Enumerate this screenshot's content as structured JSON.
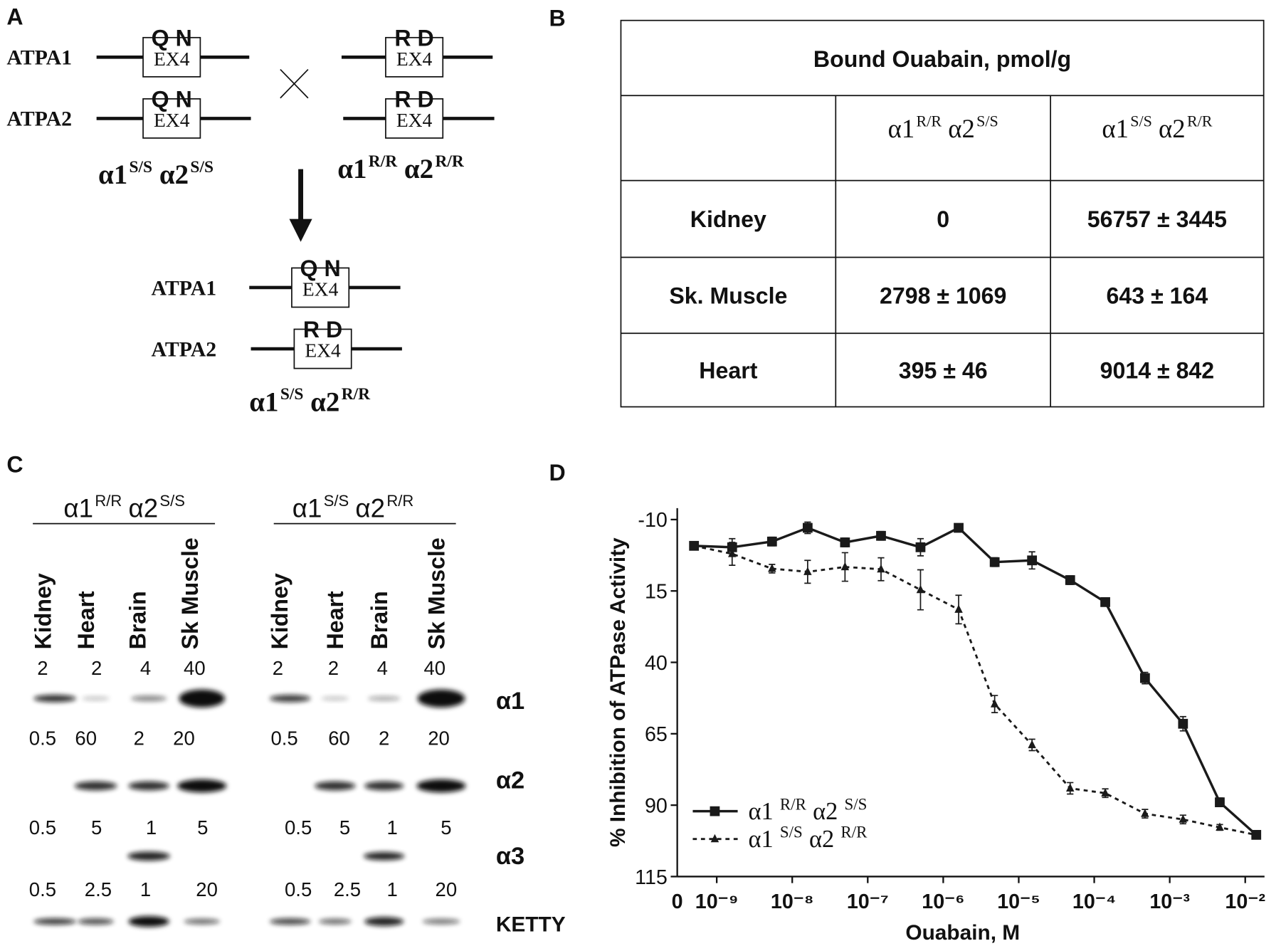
{
  "panel_a": {
    "label": "A",
    "parents": [
      {
        "genes": [
          {
            "name": "ATPA1",
            "residues": "Q N",
            "exon": "EX4"
          },
          {
            "name": "ATPA2",
            "residues": "Q N",
            "exon": "EX4"
          }
        ],
        "genotype": {
          "a1": "α1",
          "a1_sup": "S/S",
          "a2": "α2",
          "a2_sup": "S/S"
        }
      },
      {
        "genes": [
          {
            "residues": "R D",
            "exon": "EX4"
          },
          {
            "residues": "R D",
            "exon": "EX4"
          }
        ],
        "genotype": {
          "a1": "α1",
          "a1_sup": "R/R",
          "a2": "α2",
          "a2_sup": "R/R"
        }
      }
    ],
    "offspring": {
      "genes": [
        {
          "name": "ATPA1",
          "residues": "Q N",
          "exon": "EX4"
        },
        {
          "name": "ATPA2",
          "residues": "R D",
          "exon": "EX4"
        }
      ],
      "genotype": {
        "a1": "α1",
        "a1_sup": "S/S",
        "a2": "α2",
        "a2_sup": "R/R"
      }
    }
  },
  "panel_b": {
    "label": "B",
    "title": "Bound Ouabain, pmol/g",
    "columns": [
      {
        "a1": "α1",
        "a1_sup": "R/R",
        "a2": "α2",
        "a2_sup": "S/S"
      },
      {
        "a1": "α1",
        "a1_sup": "S/S",
        "a2": "α2",
        "a2_sup": "R/R"
      }
    ],
    "rows": [
      {
        "tissue": "Kidney",
        "cells": [
          "0",
          "56757 ± 3445"
        ]
      },
      {
        "tissue": "Sk. Muscle",
        "cells": [
          "2798 ± 1069",
          "643 ± 164"
        ]
      },
      {
        "tissue": "Heart",
        "cells": [
          "395 ± 46",
          "9014 ± 842"
        ]
      }
    ]
  },
  "panel_c": {
    "label": "C",
    "groups": [
      {
        "genotype": {
          "a1": "α1",
          "a1_sup": "R/R",
          "a2": "α2",
          "a2_sup": "S/S"
        },
        "lanes": [
          "Kidney",
          "Heart",
          "Brain",
          "Sk Muscle"
        ],
        "loads": [
          [
            "2",
            "2",
            "4",
            "40"
          ],
          [
            "0.5",
            "60",
            "2",
            "20"
          ],
          [
            "0.5",
            "5",
            "1",
            "5"
          ],
          [
            "0.5",
            "2.5",
            "1",
            "20"
          ]
        ]
      },
      {
        "genotype": {
          "a1": "α1",
          "a1_sup": "S/S",
          "a2": "α2",
          "a2_sup": "R/R"
        },
        "lanes": [
          "Kidney",
          "Heart",
          "Brain",
          "Sk Muscle"
        ],
        "loads": [
          [
            "2",
            "2",
            "4",
            "40"
          ],
          [
            "0.5",
            "60",
            "2",
            "20"
          ],
          [
            "0.5",
            "5",
            "1",
            "5"
          ],
          [
            "0.5",
            "2.5",
            "1",
            "20"
          ]
        ]
      }
    ],
    "bands": [
      "α1",
      "α2",
      "α3",
      "KETTY"
    ]
  },
  "chart_data": {
    "type": "line",
    "label": "D",
    "xlabel": "Ouabain, M",
    "ylabel": "% Inhibition of ATPase Activity",
    "xlog": true,
    "xlim": [
      3e-10,
      0.018
    ],
    "x_origin_label": "0",
    "xticks": [
      {
        "value": 1e-09,
        "label": "10⁻⁹"
      },
      {
        "value": 1e-08,
        "label": "10⁻⁸"
      },
      {
        "value": 1e-07,
        "label": "10⁻⁷"
      },
      {
        "value": 1e-06,
        "label": "10⁻⁶"
      },
      {
        "value": 1e-05,
        "label": "10⁻⁵"
      },
      {
        "value": 0.0001,
        "label": "10⁻⁴"
      },
      {
        "value": 0.001,
        "label": "10⁻³"
      },
      {
        "value": 0.01,
        "label": "10⁻²"
      }
    ],
    "ylim": [
      115,
      -14
    ],
    "yticks": [
      -10,
      15,
      40,
      65,
      90,
      115
    ],
    "x": [
      5e-10,
      1.6e-09,
      5.4e-09,
      1.6e-08,
      5e-08,
      1.5e-07,
      5e-07,
      1.6e-06,
      4.8e-06,
      1.5e-05,
      4.8e-05,
      0.00014,
      0.00047,
      0.0015,
      0.0046,
      0.014
    ],
    "legend": "lower left",
    "series": [
      {
        "name": [
          "α1",
          "R/R",
          "α2",
          "S/S"
        ],
        "color": "#1a1a1a",
        "marker": "square",
        "line_style": "solid",
        "values": [
          -0.8,
          -0.3,
          -2.3,
          -7.1,
          -2.0,
          -4.3,
          -0.3,
          -7.1,
          4.9,
          4.3,
          11.2,
          18.9,
          45.5,
          61.5,
          89.0,
          100.4
        ],
        "errors": [
          1,
          3,
          1.5,
          2,
          1.5,
          1.5,
          3,
          1,
          1.5,
          3,
          1.5,
          1,
          2,
          2.5,
          1.5,
          1
        ]
      },
      {
        "name": [
          "α1",
          "S/S",
          "α2",
          "R/R"
        ],
        "color": "#1a1a1a",
        "marker": "triangle",
        "line_style": "dotted",
        "values": [
          -0.8,
          2.0,
          7.2,
          8.3,
          6.6,
          7.4,
          14.6,
          21.5,
          54.6,
          68.9,
          84.1,
          85.8,
          93.0,
          95.0,
          97.8,
          100.4
        ],
        "errors": [
          1,
          4,
          1.5,
          4,
          5,
          4,
          7,
          5,
          3,
          2,
          2,
          1.5,
          1.5,
          1.5,
          1,
          1
        ]
      }
    ]
  }
}
